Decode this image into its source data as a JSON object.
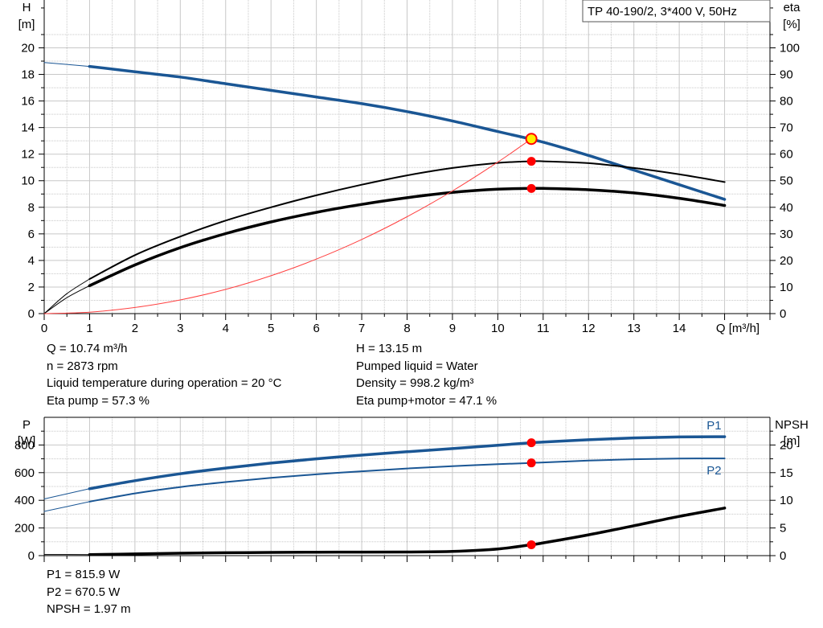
{
  "header_box": "TP 40-190/2, 3*400 V, 50Hz",
  "info_top_left": [
    "Q = 10.74 m³/h",
    "n = 2873 rpm",
    "Liquid temperature during operation = 20 °C",
    "Eta pump = 57.3 %"
  ],
  "info_top_right": [
    "H = 13.15 m",
    "Pumped liquid = Water",
    "Density = 998.2 kg/m³",
    "Eta pump+motor = 47.1 %"
  ],
  "info_bottom": [
    "P1 = 815.9 W",
    "P2 = 670.5 W",
    "NPSH = 1.97 m"
  ],
  "colors": {
    "head": "#1a5694",
    "power": "#1a5694",
    "eta": "#000000",
    "npsh": "#000000",
    "system": "#ff4040",
    "point": "#ff0000",
    "duty_point": "#ffee00",
    "grid": "#c8c8c8"
  },
  "chart_data": [
    {
      "type": "line",
      "x_ticks": [
        "0",
        "1",
        "2",
        "3",
        "4",
        "5",
        "6",
        "7",
        "8",
        "9",
        "10",
        "11",
        "12",
        "13",
        "14"
      ],
      "xlabel": "Q [m³/h]",
      "xlim": [
        0,
        16
      ],
      "y_left": {
        "label_top": "H",
        "label_unit": "[m]",
        "ticks": [
          "0",
          "2",
          "4",
          "6",
          "8",
          "10",
          "12",
          "14",
          "16",
          "18",
          "20"
        ],
        "lim": [
          0,
          23.6
        ]
      },
      "y_right": {
        "label_top": "eta",
        "label_unit": "[%]",
        "ticks": [
          "0",
          "10",
          "20",
          "30",
          "40",
          "50",
          "60",
          "70",
          "80",
          "90",
          "100"
        ],
        "lim": [
          0,
          118
        ]
      },
      "grid": true,
      "series": [
        {
          "key": "head",
          "axis": "left",
          "width": 3.5,
          "x": [
            1,
            2,
            3,
            4,
            5,
            6,
            7,
            8,
            9,
            10,
            11,
            12,
            13,
            14,
            15
          ],
          "y": [
            18.6,
            18.2,
            17.8,
            17.3,
            16.8,
            16.3,
            15.8,
            15.2,
            14.5,
            13.7,
            12.9,
            11.9,
            10.8,
            9.7,
            8.6
          ]
        },
        {
          "key": "head_ext",
          "axis": "left",
          "width": 1,
          "x": [
            0,
            1
          ],
          "y": [
            18.9,
            18.6
          ]
        },
        {
          "key": "eta_total",
          "axis": "right",
          "width": 3.5,
          "x": [
            1,
            2,
            3,
            4,
            5,
            6,
            7,
            8,
            9,
            10,
            10.74,
            11,
            12,
            13,
            14,
            15
          ],
          "y": [
            10.5,
            18.3,
            24.8,
            30.1,
            34.5,
            38.1,
            41.1,
            43.6,
            45.6,
            46.8,
            47.1,
            47.1,
            46.6,
            45.4,
            43.4,
            40.7
          ]
        },
        {
          "key": "eta_pump",
          "axis": "right",
          "width": 2,
          "x": [
            1,
            2,
            3,
            4,
            5,
            6,
            7,
            8,
            9,
            10,
            10.74,
            11,
            12,
            13,
            14,
            15
          ],
          "y": [
            13,
            22,
            29,
            35,
            40,
            44.5,
            48.5,
            52,
            54.8,
            56.7,
            57.3,
            57.3,
            56.6,
            54.8,
            52.4,
            49.5
          ]
        },
        {
          "key": "eta_total_ext",
          "axis": "right",
          "width": 1,
          "x": [
            0,
            0.5,
            1
          ],
          "y": [
            0,
            6,
            10.5
          ]
        },
        {
          "key": "eta_pump_ext",
          "axis": "right",
          "width": 1,
          "x": [
            0,
            0.5,
            1
          ],
          "y": [
            0,
            7.5,
            13
          ]
        },
        {
          "key": "system",
          "axis": "left",
          "width": 1,
          "x": [
            0,
            1,
            2,
            3,
            4,
            5,
            6,
            7,
            8,
            9,
            10,
            10.74
          ],
          "y": [
            0,
            0.11,
            0.46,
            1.03,
            1.82,
            2.85,
            4.1,
            5.58,
            7.29,
            9.23,
            11.4,
            13.15
          ]
        }
      ],
      "points": [
        {
          "axis": "left",
          "x": 10.74,
          "y": 13.15,
          "duty": true
        },
        {
          "axis": "right",
          "x": 10.74,
          "y": 57.3
        },
        {
          "axis": "right",
          "x": 10.74,
          "y": 47.1
        }
      ]
    },
    {
      "type": "line",
      "xlim": [
        0,
        16
      ],
      "y_left": {
        "label_top": "P",
        "label_unit": "[W]",
        "ticks": [
          "0",
          "200",
          "400",
          "600",
          "800"
        ],
        "lim": [
          0,
          1000
        ]
      },
      "y_right": {
        "label_top": "NPSH",
        "label_unit": "[m]",
        "ticks": [
          "0",
          "5",
          "10",
          "15",
          "20"
        ],
        "lim": [
          0,
          25
        ]
      },
      "grid": true,
      "series": [
        {
          "key": "P1",
          "name": "P1",
          "axis": "left",
          "width": 3.5,
          "x": [
            1,
            2,
            3,
            4,
            5,
            6,
            7,
            8,
            9,
            10,
            10.74,
            11,
            12,
            13,
            14,
            15
          ],
          "y": [
            484,
            542,
            592,
            633,
            669,
            700,
            727,
            751,
            774,
            798,
            816,
            821,
            838,
            851,
            858,
            860
          ]
        },
        {
          "key": "P2",
          "name": "P2",
          "axis": "left",
          "width": 2,
          "x": [
            1,
            2,
            3,
            4,
            5,
            6,
            7,
            8,
            9,
            10,
            10.74,
            11,
            12,
            13,
            14,
            15
          ],
          "y": [
            390,
            450,
            496,
            532,
            563,
            588,
            610,
            630,
            647,
            661,
            670.5,
            674,
            687,
            697,
            702,
            703
          ]
        },
        {
          "key": "P1_ext",
          "axis": "left",
          "width": 1,
          "x": [
            0,
            1
          ],
          "y": [
            410,
            484
          ]
        },
        {
          "key": "P2_ext",
          "axis": "left",
          "width": 1,
          "x": [
            0,
            1
          ],
          "y": [
            320,
            390
          ]
        },
        {
          "key": "NPSH",
          "axis": "right",
          "width": 3.5,
          "x": [
            1,
            2,
            3,
            4,
            5,
            6,
            7,
            8,
            9,
            10,
            10.74,
            11,
            12,
            13,
            14,
            15
          ],
          "y": [
            0.18,
            0.31,
            0.43,
            0.52,
            0.58,
            0.63,
            0.64,
            0.66,
            0.76,
            1.21,
            1.97,
            2.31,
            3.76,
            5.4,
            7.1,
            8.6
          ]
        },
        {
          "key": "NPSH_ext",
          "axis": "right",
          "width": 1,
          "x": [
            0,
            1
          ],
          "y": [
            0.2,
            0.18
          ]
        }
      ],
      "points": [
        {
          "axis": "left",
          "x": 10.74,
          "y": 815.9
        },
        {
          "axis": "left",
          "x": 10.74,
          "y": 670.5
        },
        {
          "axis": "right",
          "x": 10.74,
          "y": 1.97
        }
      ]
    }
  ]
}
